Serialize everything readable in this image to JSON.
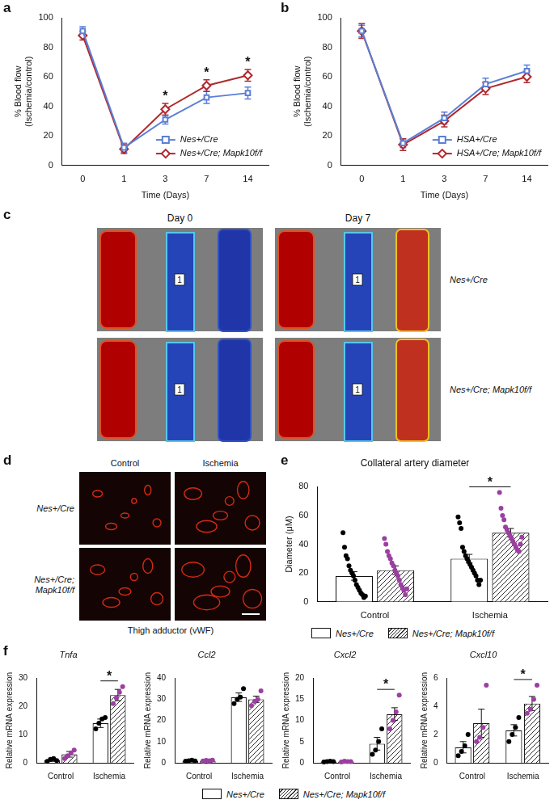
{
  "chart_data": [
    {
      "panel": "a",
      "type": "line",
      "categories": [
        "0",
        "1",
        "3",
        "7",
        "14"
      ],
      "x_label": "Time (Days)",
      "y_label": [
        "% Blood flow",
        "(Ischemia/control)"
      ],
      "ylim": [
        0,
        100
      ],
      "yticks": [
        0,
        20,
        40,
        60,
        80,
        100
      ],
      "grid": false,
      "legend": "lower right",
      "series": [
        {
          "name": "Nes+/Cre",
          "color": "#5b7fd6",
          "marker": "square",
          "values": [
            91,
            12,
            31,
            46,
            49
          ],
          "errors": [
            3,
            3,
            3,
            4,
            4
          ]
        },
        {
          "name": "Nes+/Cre; Mapk10f/f",
          "color": "#b0282e",
          "marker": "diamond",
          "values": [
            88,
            11,
            38,
            54,
            61
          ],
          "errors": [
            3,
            3,
            4,
            4,
            4
          ]
        }
      ],
      "annotations": [
        {
          "x": "3",
          "text": "*"
        },
        {
          "x": "7",
          "text": "*"
        },
        {
          "x": "14",
          "text": "*"
        }
      ]
    },
    {
      "panel": "b",
      "type": "line",
      "categories": [
        "0",
        "1",
        "3",
        "7",
        "14"
      ],
      "x_label": "Time (Days)",
      "y_label": [
        "% Blood flow",
        "(Ischemia/control)"
      ],
      "ylim": [
        0,
        100
      ],
      "yticks": [
        0,
        20,
        40,
        60,
        80,
        100
      ],
      "grid": false,
      "legend": "lower right",
      "series": [
        {
          "name": "HSA+/Cre",
          "color": "#5b7fd6",
          "marker": "square",
          "values": [
            91,
            15,
            32,
            55,
            64
          ],
          "errors": [
            4,
            3,
            4,
            4,
            4
          ]
        },
        {
          "name": "HSA+/Cre; Mapk10f/f",
          "color": "#b0282e",
          "marker": "diamond",
          "values": [
            91,
            14,
            30,
            52,
            60
          ],
          "errors": [
            5,
            4,
            4,
            4,
            4
          ]
        }
      ]
    },
    {
      "panel": "e",
      "type": "bar",
      "title": "Collateral artery diameter",
      "categories": [
        "Control",
        "Ischemia"
      ],
      "y_label": "Diameter (μM)",
      "ylim": [
        0,
        80
      ],
      "yticks": [
        0,
        20,
        40,
        60,
        80
      ],
      "grid": false,
      "series": [
        {
          "name": "Nes+/Cre",
          "color": "#000000",
          "values": [
            18,
            30
          ],
          "errors": [
            3,
            3
          ],
          "points": [
            [
              48,
              38,
              32,
              30,
              25,
              22,
              20,
              18,
              15,
              12,
              10,
              8,
              6,
              5,
              3,
              4
            ],
            [
              59,
              55,
              51,
              38,
              35,
              32,
              30,
              28,
              26,
              24,
              22,
              20,
              18,
              15,
              12,
              15
            ]
          ]
        },
        {
          "name": "Nes+/Cre; Mapk10f/f",
          "color": "#9b3fa0",
          "values": [
            22,
            48
          ],
          "errors": [
            3,
            3
          ],
          "points": [
            [
              44,
              40,
              35,
              32,
              30,
              27,
              25,
              22,
              20,
              18,
              15,
              12,
              10,
              8,
              5,
              9
            ],
            [
              76,
              65,
              60,
              57,
              52,
              50,
              48,
              46,
              44,
              42,
              40,
              38,
              36,
              35,
              40,
              45
            ]
          ]
        }
      ],
      "annotations": [
        {
          "x": "Ischemia",
          "text": "*"
        }
      ]
    },
    {
      "panel": "f",
      "type": "bar",
      "title": "Tnfa",
      "categories": [
        "Control",
        "Ischemia"
      ],
      "y_label": "Relative mRNA expression",
      "ylim": [
        0,
        30
      ],
      "yticks": [
        0,
        10,
        20,
        30
      ],
      "grid": false,
      "series": [
        {
          "name": "Nes+/Cre",
          "color": "#000000",
          "values": [
            1,
            14
          ],
          "errors": [
            0.5,
            1.5
          ],
          "points": [
            [
              0.5,
              1.2,
              1.5,
              0.8
            ],
            [
              12,
              14,
              15.5,
              16
            ]
          ]
        },
        {
          "name": "Nes+/Cre; Mapk10f/f",
          "color": "#9b3fa0",
          "values": [
            3,
            24
          ],
          "errors": [
            1,
            2
          ],
          "points": [
            [
              1.5,
              2.5,
              3.5,
              4.5
            ],
            [
              21,
              23,
              25,
              27
            ]
          ]
        }
      ],
      "annotations": [
        {
          "x": "Ischemia",
          "text": "*"
        }
      ]
    },
    {
      "type": "bar",
      "title": "Ccl2",
      "categories": [
        "Control",
        "Ischemia"
      ],
      "y_label": "Relative mRNA expression",
      "ylim": [
        0,
        40
      ],
      "yticks": [
        0,
        10,
        20,
        30,
        40
      ],
      "grid": false,
      "series": [
        {
          "name": "Nes+/Cre",
          "color": "#000000",
          "values": [
            1,
            31
          ],
          "errors": [
            0.2,
            2
          ],
          "points": [
            [
              0.8,
              1,
              1.2,
              0.9
            ],
            [
              28,
              30,
              31,
              35
            ]
          ]
        },
        {
          "name": "Nes+/Cre; Mapk10f/f",
          "color": "#9b3fa0",
          "values": [
            1,
            30
          ],
          "errors": [
            0.2,
            1.5
          ],
          "points": [
            [
              0.9,
              1.1,
              1,
              1.2
            ],
            [
              27,
              29,
              30,
              34
            ]
          ]
        }
      ]
    },
    {
      "type": "bar",
      "title": "Cxcl2",
      "categories": [
        "Control",
        "Ischemia"
      ],
      "y_label": "Relative mRNA expression",
      "ylim": [
        0,
        20
      ],
      "yticks": [
        0,
        5,
        10,
        15,
        20
      ],
      "grid": false,
      "series": [
        {
          "name": "Nes+/Cre",
          "color": "#000000",
          "values": [
            0.3,
            4.5
          ],
          "errors": [
            0.1,
            1.5
          ],
          "points": [
            [
              0.2,
              0.3,
              0.4,
              0.3
            ],
            [
              2,
              3,
              5,
              8
            ]
          ]
        },
        {
          "name": "Nes+/Cre; Mapk10f/f",
          "color": "#9b3fa0",
          "values": [
            0.3,
            11.5
          ],
          "errors": [
            0.1,
            1.5
          ],
          "points": [
            [
              0.2,
              0.4,
              0.3,
              0.3
            ],
            [
              8,
              10,
              12,
              16
            ]
          ]
        }
      ],
      "annotations": [
        {
          "x": "Ischemia",
          "text": "*"
        }
      ]
    },
    {
      "type": "bar",
      "title": "Cxcl10",
      "categories": [
        "Control",
        "Ischemia"
      ],
      "y_label": "Relative mRNA expression",
      "ylim": [
        0,
        6
      ],
      "yticks": [
        0,
        2,
        4,
        6
      ],
      "grid": false,
      "series": [
        {
          "name": "Nes+/Cre",
          "color": "#000000",
          "values": [
            1.1,
            2.3
          ],
          "errors": [
            0.4,
            0.4
          ],
          "points": [
            [
              0.5,
              0.8,
              1.2,
              2
            ],
            [
              1.5,
              2,
              2.5,
              3.2
            ]
          ]
        },
        {
          "name": "Nes+/Cre; Mapk10f/f",
          "color": "#9b3fa0",
          "values": [
            2.8,
            4.2
          ],
          "errors": [
            1,
            0.5
          ],
          "points": [
            [
              1.5,
              1.8,
              2.5,
              5.5
            ],
            [
              3.5,
              3.8,
              4.5,
              5.5
            ]
          ]
        }
      ],
      "annotations": [
        {
          "x": "Ischemia",
          "text": "*"
        }
      ]
    }
  ],
  "image_panels": [
    {
      "panel": "c",
      "columns": [
        "Day 0",
        "Day 7"
      ],
      "rows": [
        [
          "Nes+/Cre"
        ],
        [
          "Nes+/Cre; Mapk10f/f"
        ]
      ],
      "roi_label": "1"
    },
    {
      "panel": "d",
      "columns": [
        "Control",
        "Ischemia"
      ],
      "rows": [
        [
          "Nes+/Cre"
        ],
        [
          "Nes+/Cre;",
          "Mapk10f/f"
        ]
      ],
      "caption": "Thigh adductor (vWF)"
    }
  ]
}
